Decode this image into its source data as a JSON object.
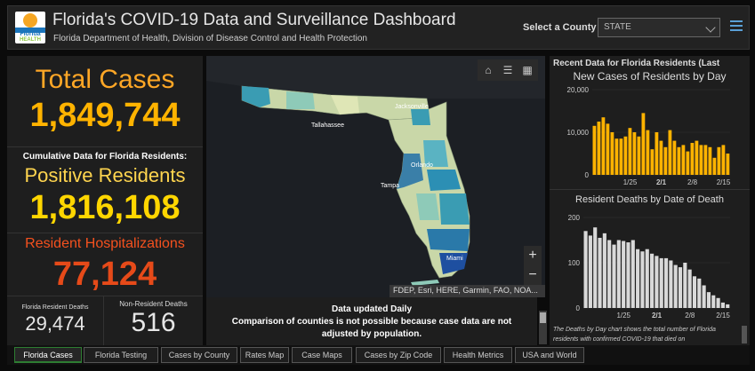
{
  "header": {
    "title": "Florida's COVID-19 Data and Surveillance Dashboard",
    "subtitle": "Florida Department of Health, Division of Disease Control and Health Protection",
    "logo_line1": "Florida",
    "logo_line2": "HEALTH",
    "county_label": "Select a County",
    "county_value": "STATE",
    "menu_icon": "hamburger-menu-icon"
  },
  "left_panel": {
    "total_cases_label": "Total Cases",
    "total_cases_value": "1,849,744",
    "cumulative_label": "Cumulative Data for Florida Residents:",
    "positive_residents_label": "Positive Residents",
    "positive_residents_value": "1,816,108",
    "hospitalizations_label": "Resident Hospitalizations",
    "hospitalizations_value": "77,124",
    "resident_deaths_label": "Florida Resident Deaths",
    "resident_deaths_value": "29,474",
    "nonresident_deaths_label": "Non-Resident Deaths",
    "nonresident_deaths_value": "516",
    "colors": {
      "total": "#ffb300",
      "positive": "#ffd600",
      "hosp": "#e64a19"
    }
  },
  "map": {
    "tools": [
      "home-icon",
      "list-icon",
      "qr-grid-icon"
    ],
    "zoom_in": "+",
    "zoom_out": "−",
    "attribution": "FDEP, Esri, HERE, Garmin, FAO, NOA...",
    "cities": {
      "tallahassee": "Tallahassee",
      "jacksonville": "Jacksonville",
      "orlando": "Orlando",
      "tampa": "Tampa",
      "miami": "Miami"
    }
  },
  "notice": {
    "line1": "Data updated Daily",
    "line2": "Comparison of counties is not possible because case data are not adjusted by population."
  },
  "right_panel": {
    "recent_title": "Recent Data for Florida Residents (Last",
    "footnote": "The Deaths by Day chart shows the total number of Florida residents with confirmed COVID-19 that died on"
  },
  "chart_data": [
    {
      "type": "bar",
      "title": "New Cases of Residents by Day",
      "x": [
        "1/17",
        "1/18",
        "1/19",
        "1/20",
        "1/21",
        "1/22",
        "1/23",
        "1/24",
        "1/25",
        "1/26",
        "1/27",
        "1/28",
        "1/29",
        "1/30",
        "1/31",
        "2/1",
        "2/2",
        "2/3",
        "2/4",
        "2/5",
        "2/6",
        "2/7",
        "2/8",
        "2/9",
        "2/10",
        "2/11",
        "2/12",
        "2/13",
        "2/14",
        "2/15",
        "2/16"
      ],
      "values": [
        11500,
        12500,
        13500,
        12000,
        10000,
        8500,
        8500,
        9000,
        11000,
        10000,
        9000,
        14500,
        10500,
        6000,
        10000,
        8000,
        6500,
        10500,
        8000,
        6500,
        7000,
        5500,
        7500,
        8000,
        7000,
        7000,
        6500,
        4000,
        6500,
        7000,
        5000
      ],
      "x_ticks": [
        "1/25",
        "2/1",
        "2/8",
        "2/15"
      ],
      "y_ticks": [
        "0",
        "10,000",
        "20,000"
      ],
      "ylim": [
        0,
        20000
      ],
      "color": "#ffb300"
    },
    {
      "type": "bar",
      "title": "Resident Deaths by Date of Death",
      "x": [
        "1/17",
        "1/18",
        "1/19",
        "1/20",
        "1/21",
        "1/22",
        "1/23",
        "1/24",
        "1/25",
        "1/26",
        "1/27",
        "1/28",
        "1/29",
        "1/30",
        "1/31",
        "2/1",
        "2/2",
        "2/3",
        "2/4",
        "2/5",
        "2/6",
        "2/7",
        "2/8",
        "2/9",
        "2/10",
        "2/11",
        "2/12",
        "2/13",
        "2/14",
        "2/15",
        "2/16"
      ],
      "values": [
        170,
        160,
        178,
        155,
        165,
        150,
        140,
        150,
        148,
        145,
        150,
        130,
        125,
        130,
        120,
        115,
        110,
        110,
        105,
        95,
        90,
        100,
        85,
        70,
        65,
        50,
        35,
        28,
        22,
        12,
        8
      ],
      "x_ticks": [
        "1/25",
        "2/1",
        "2/8",
        "2/15"
      ],
      "y_ticks": [
        "0",
        "100",
        "200"
      ],
      "ylim": [
        0,
        200
      ],
      "color": "#d9d9d9"
    }
  ],
  "tabs": [
    {
      "label": "Florida Cases",
      "active": true
    },
    {
      "label": "Florida Testing"
    },
    {
      "label": "Cases by County"
    },
    {
      "label": "Rates Map"
    },
    {
      "label": "Case Maps"
    },
    {
      "label": "Cases by Zip Code"
    },
    {
      "label": "Health Metrics"
    },
    {
      "label": "USA and World"
    }
  ]
}
